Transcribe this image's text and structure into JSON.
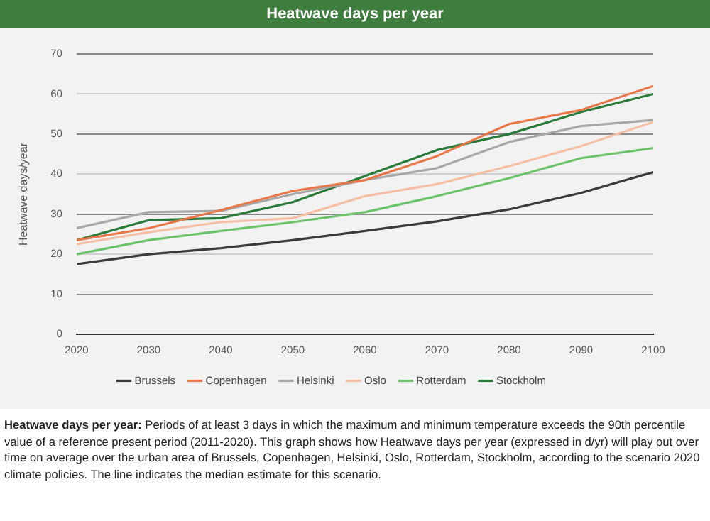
{
  "chart_data": {
    "type": "line",
    "title": "Heatwave days per year",
    "ylabel": "Heatwave days/year",
    "x": [
      2020,
      2030,
      2040,
      2050,
      2060,
      2070,
      2080,
      2090,
      2100
    ],
    "series": [
      {
        "name": "Brussels",
        "color": "#3a3a3a",
        "values": [
          17.5,
          20,
          21.5,
          23.5,
          25.8,
          28.2,
          31.2,
          35.3,
          40.5
        ]
      },
      {
        "name": "Copenhagen",
        "color": "#e8784a",
        "values": [
          23.5,
          26.5,
          31,
          35.8,
          38.5,
          44.5,
          52.5,
          56,
          62
        ]
      },
      {
        "name": "Helsinki",
        "color": "#a8a8a8",
        "values": [
          26.5,
          30.5,
          30.8,
          35,
          38.5,
          41.5,
          48,
          52,
          53.5
        ]
      },
      {
        "name": "Oslo",
        "color": "#f5bfa6",
        "values": [
          22.5,
          25.5,
          28,
          29,
          34.5,
          37.5,
          42,
          47,
          53
        ]
      },
      {
        "name": "Rotterdam",
        "color": "#6cc36c",
        "values": [
          20,
          23.5,
          25.8,
          28,
          30.5,
          34.5,
          39,
          44,
          46.5
        ]
      },
      {
        "name": "Stockholm",
        "color": "#2a7a3a",
        "values": [
          23.5,
          28.5,
          29,
          33,
          39.5,
          46,
          50,
          55.5,
          60
        ]
      }
    ],
    "xlim": [
      2020,
      2100
    ],
    "xticks": [
      2020,
      2030,
      2040,
      2050,
      2060,
      2070,
      2080,
      2090,
      2100
    ],
    "ylim": [
      0,
      70
    ],
    "yticks": [
      0,
      10,
      20,
      30,
      40,
      50,
      60,
      70
    ],
    "grid": "y",
    "legend": "bottom",
    "marker": "none",
    "line_style": "solid",
    "annotations": [
      "Heatwave days per year:",
      "Periods of at least 3 days in which the maximum and minimum temperature exceeds the 90th percentile value of a reference present period (2011-2020). This graph shows how Heatwave days per year (expressed in d/yr) will play out over time on average over the urban area of Brussels, Copenhagen, Helsinki, Oslo, Rotterdam, Stockholm, according to the scenario 2020 climate policies. The line indicates the median estimate for this scenario."
    ]
  }
}
